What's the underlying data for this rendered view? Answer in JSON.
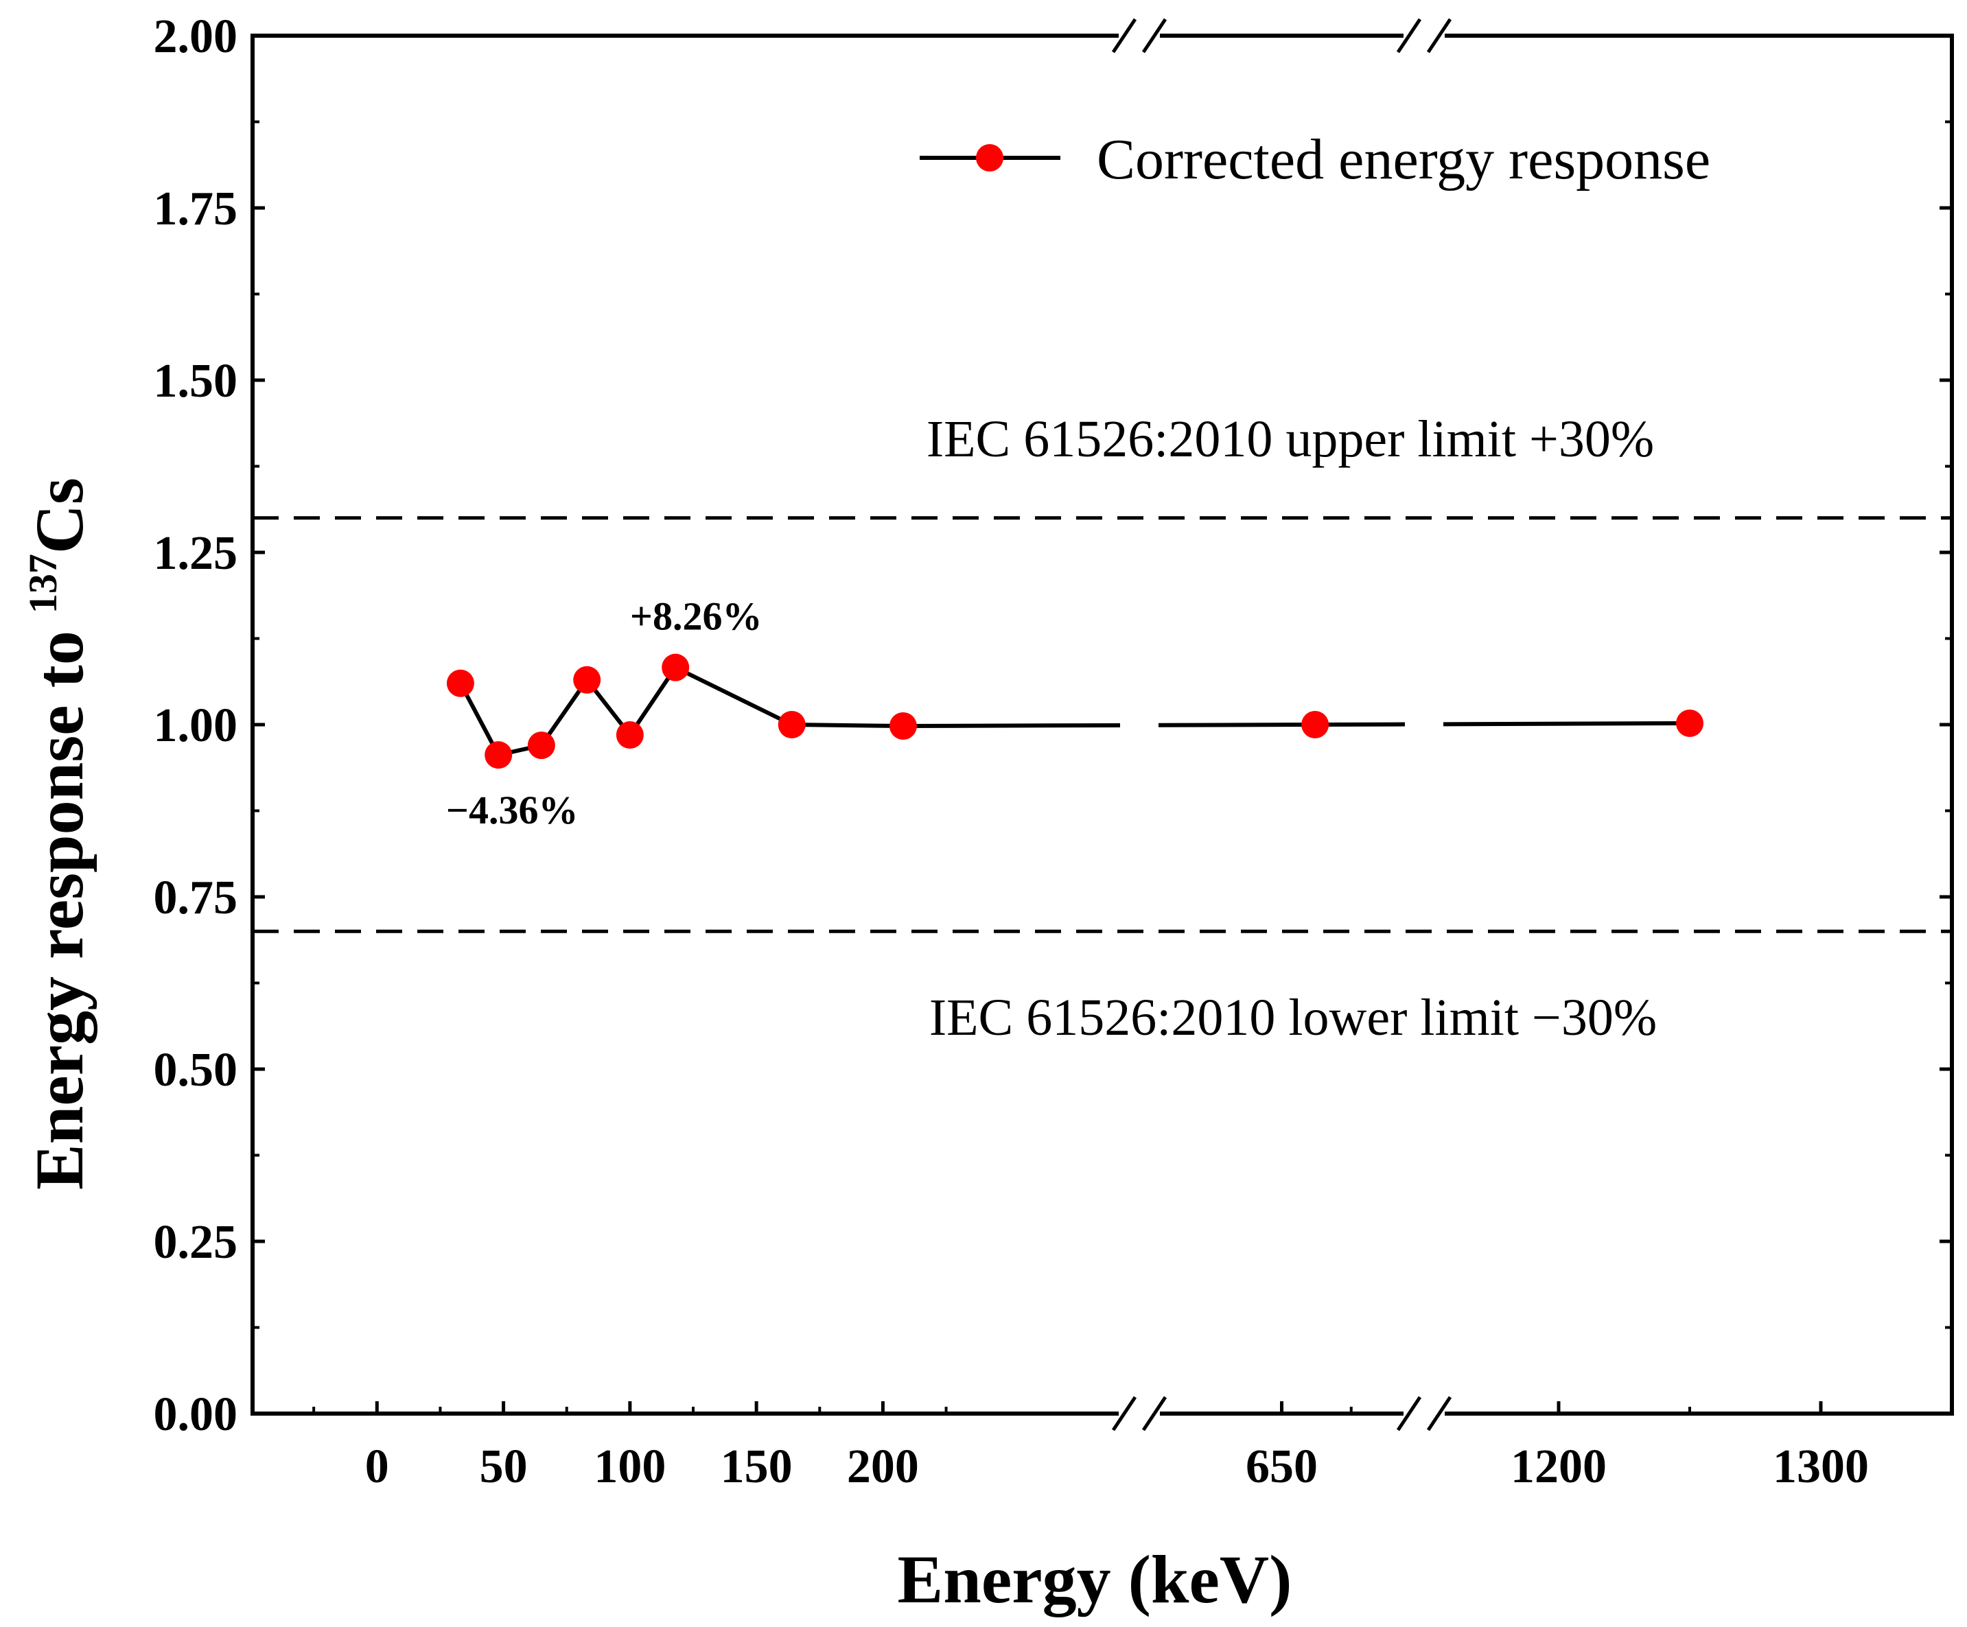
{
  "chart_data": {
    "type": "line",
    "xlabel": "Energy (keV)",
    "ylabel": {
      "prefix": "Energy response to ",
      "isotope_mass": "137",
      "isotope_symbol": "Cs"
    },
    "ylim": [
      0,
      2
    ],
    "y_ticks": [
      "0.00",
      "0.25",
      "0.50",
      "0.75",
      "1.00",
      "1.25",
      "1.50",
      "1.75",
      "2.00"
    ],
    "x_axis": {
      "broken": true,
      "segments": [
        {
          "range": [
            -50,
            300
          ],
          "ticks": [
            0,
            50,
            100,
            150,
            200
          ]
        },
        {
          "range": [
            600,
            700
          ],
          "ticks": [
            650
          ]
        },
        {
          "range": [
            1150,
            1350
          ],
          "ticks": [
            1200,
            1300
          ]
        }
      ]
    },
    "series": [
      {
        "name": "Corrected energy response",
        "color": "#000000",
        "marker_color": "#ff0000",
        "x": [
          33,
          48,
          65,
          83,
          100,
          118,
          164,
          208,
          662,
          1250
        ],
        "y": [
          1.06,
          0.956,
          0.97,
          1.065,
          0.985,
          1.083,
          1.0,
          0.998,
          1.0,
          1.002
        ]
      }
    ],
    "reference_lines": [
      {
        "y": 1.3,
        "style": "dashed",
        "label": "IEC 61526:2010 upper limit +30%"
      },
      {
        "y": 0.7,
        "style": "dashed",
        "label": "IEC 61526:2010 lower limit −30%"
      }
    ],
    "annotations": [
      {
        "text": "+8.26%",
        "x": 118,
        "y": 1.083,
        "position": "above"
      },
      {
        "text": "−4.36%",
        "x": 48,
        "y": 0.956,
        "position": "below"
      }
    ],
    "legend": {
      "placement": "top-right"
    }
  }
}
